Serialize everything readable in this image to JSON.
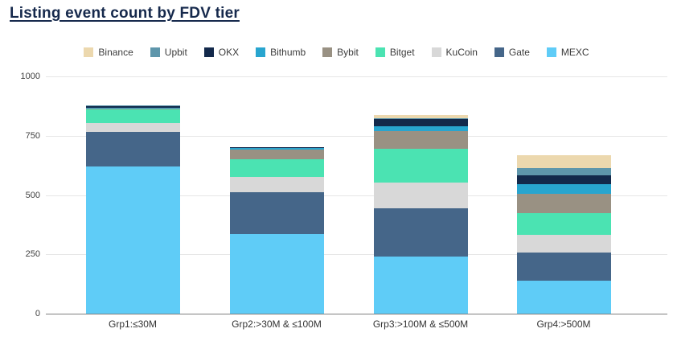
{
  "title": "Listing event count by FDV tier",
  "chart_data": {
    "type": "bar",
    "stacked": true,
    "title": "Listing event count by FDV tier",
    "categories": [
      "Grp1:≤30M",
      "Grp2:>30M & ≤100M",
      "Grp3:>100M & ≤500M",
      "Grp4:>500M"
    ],
    "series": [
      {
        "name": "Binance",
        "color": "#ecd8ae",
        "values": [
          0,
          0,
          15,
          55
        ]
      },
      {
        "name": "Upbit",
        "color": "#5e96ab",
        "values": [
          2,
          2,
          3,
          30
        ]
      },
      {
        "name": "OKX",
        "color": "#13294b",
        "values": [
          7,
          4,
          30,
          38
        ]
      },
      {
        "name": "Bithumb",
        "color": "#28a5cf",
        "values": [
          2,
          6,
          22,
          42
        ]
      },
      {
        "name": "Bybit",
        "color": "#999183",
        "values": [
          4,
          41,
          74,
          80
        ]
      },
      {
        "name": "Bitget",
        "color": "#4be3b2",
        "values": [
          58,
          72,
          142,
          90
        ]
      },
      {
        "name": "KuCoin",
        "color": "#d8d8d8",
        "values": [
          38,
          65,
          107,
          76
        ]
      },
      {
        "name": "Gate",
        "color": "#456689",
        "values": [
          146,
          176,
          205,
          120
        ]
      },
      {
        "name": "MEXC",
        "color": "#5fccf7",
        "values": [
          620,
          337,
          240,
          138
        ]
      }
    ],
    "stack_order_bottom_to_top": [
      "MEXC",
      "Gate",
      "KuCoin",
      "Bitget",
      "Bybit",
      "Bithumb",
      "OKX",
      "Upbit",
      "Binance"
    ],
    "totals": [
      877,
      703,
      838,
      669
    ],
    "yticks": [
      0,
      250,
      500,
      750,
      1000
    ],
    "ylim": [
      0,
      1000
    ],
    "ylabel": "",
    "xlabel": "",
    "legend_position": "top",
    "grid": "horizontal",
    "colors": {
      "title_text": "#16294c",
      "axis_line": "#7f7f7f",
      "gridline": "#e6e6e6",
      "tick_text": "#404040",
      "background": "#ffffff"
    }
  }
}
